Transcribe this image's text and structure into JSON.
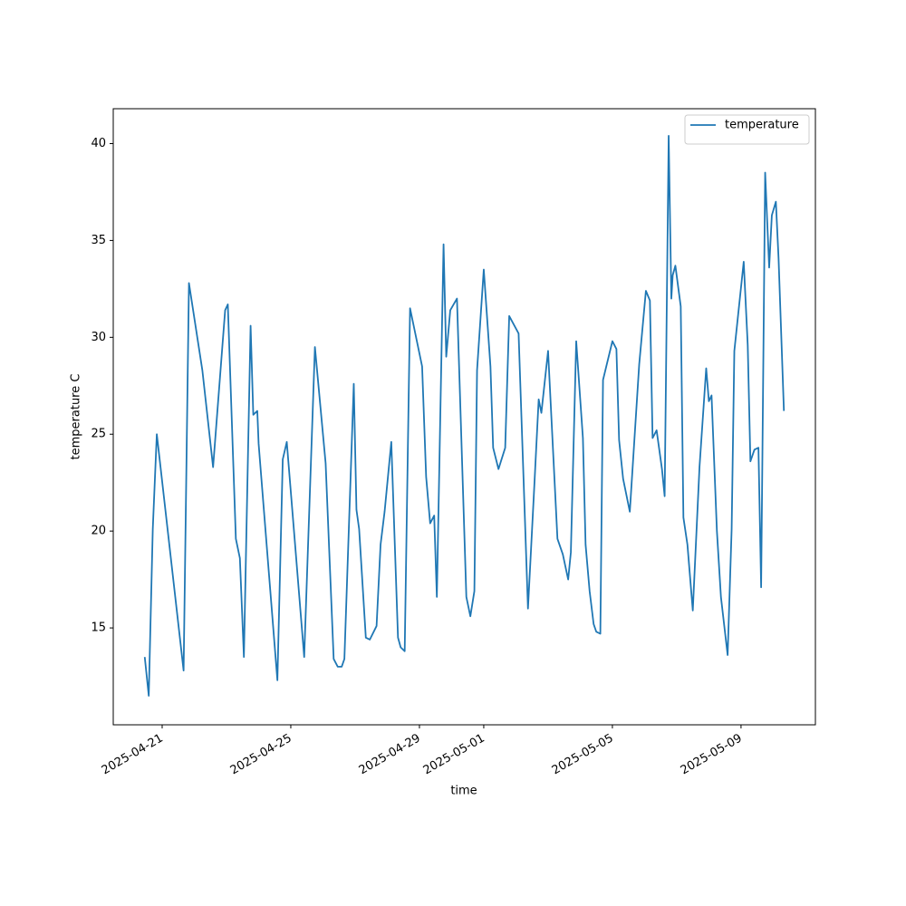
{
  "chart_data": {
    "type": "line",
    "xlabel": "time",
    "ylabel": "temperature C",
    "legend": "upper right",
    "xlim": [
      "2025-04-19T11:30",
      "2025-05-11T07:30"
    ],
    "xticks": [
      "2025-04-21",
      "2025-04-25",
      "2025-04-29",
      "2025-05-01",
      "2025-05-05",
      "2025-05-09"
    ],
    "ylim": [
      10,
      41.8
    ],
    "yticks": [
      15,
      20,
      25,
      30,
      35,
      40
    ],
    "x": [
      "2025-04-20T11:00",
      "2025-04-20T14:00",
      "2025-04-20T17:00",
      "2025-04-20T20:00",
      "2025-04-21T16:00",
      "2025-04-21T20:00",
      "2025-04-22T06:00",
      "2025-04-22T14:00",
      "2025-04-22T23:00",
      "2025-04-23T01:00",
      "2025-04-23T07:00",
      "2025-04-23T10:00",
      "2025-04-23T13:00",
      "2025-04-23T18:00",
      "2025-04-23T20:00",
      "2025-04-23T23:00",
      "2025-04-24T00:00",
      "2025-04-24T14:00",
      "2025-04-24T18:00",
      "2025-04-24T21:00",
      "2025-04-25T10:00",
      "2025-04-25T18:00",
      "2025-04-26T02:00",
      "2025-04-26T08:00",
      "2025-04-26T11:00",
      "2025-04-26T14:00",
      "2025-04-26T16:00",
      "2025-04-26T23:00",
      "2025-04-27T01:00",
      "2025-04-27T03:00",
      "2025-04-27T08:00",
      "2025-04-27T11:00",
      "2025-04-27T16:00",
      "2025-04-27T19:00",
      "2025-04-27T22:00",
      "2025-04-28T03:00",
      "2025-04-28T08:00",
      "2025-04-28T10:00",
      "2025-04-28T13:00",
      "2025-04-28T17:00",
      "2025-04-29T02:00",
      "2025-04-29T05:00",
      "2025-04-29T08:00",
      "2025-04-29T11:00",
      "2025-04-29T13:00",
      "2025-04-29T18:00",
      "2025-04-29T20:00",
      "2025-04-29T23:00",
      "2025-04-30T04:00",
      "2025-04-30T11:00",
      "2025-04-30T14:00",
      "2025-04-30T17:00",
      "2025-04-30T19:00",
      "2025-05-01T00:00",
      "2025-05-01T05:00",
      "2025-05-01T07:00",
      "2025-05-01T11:00",
      "2025-05-01T16:00",
      "2025-05-01T19:00",
      "2025-05-02T02:00",
      "2025-05-02T09:00",
      "2025-05-02T14:00",
      "2025-05-02T17:00",
      "2025-05-02T19:00",
      "2025-05-03T00:00",
      "2025-05-03T07:00",
      "2025-05-03T11:00",
      "2025-05-03T15:00",
      "2025-05-03T17:00",
      "2025-05-03T21:00",
      "2025-05-04T02:00",
      "2025-05-04T04:00",
      "2025-05-04T07:00",
      "2025-05-04T10:00",
      "2025-05-04T12:00",
      "2025-05-04T15:00",
      "2025-05-04T17:00",
      "2025-05-05T00:00",
      "2025-05-05T03:00",
      "2025-05-05T05:00",
      "2025-05-05T08:00",
      "2025-05-05T13:00",
      "2025-05-05T20:00",
      "2025-05-06T01:00",
      "2025-05-06T04:00",
      "2025-05-06T06:00",
      "2025-05-06T09:00",
      "2025-05-06T13:00",
      "2025-05-06T15:00",
      "2025-05-06T18:00",
      "2025-05-06T20:00",
      "2025-05-06T21:00",
      "2025-05-06T23:00",
      "2025-05-07T03:00",
      "2025-05-07T05:00",
      "2025-05-07T08:00",
      "2025-05-07T12:00",
      "2025-05-07T17:00",
      "2025-05-07T22:00",
      "2025-05-08T00:00",
      "2025-05-08T02:00",
      "2025-05-08T06:00",
      "2025-05-08T09:00",
      "2025-05-08T14:00",
      "2025-05-08T17:00",
      "2025-05-08T19:00",
      "2025-05-09T02:00",
      "2025-05-09T05:00",
      "2025-05-09T07:00",
      "2025-05-09T10:00",
      "2025-05-09T13:00",
      "2025-05-09T15:00",
      "2025-05-09T18:00",
      "2025-05-09T21:00",
      "2025-05-09T23:00",
      "2025-05-10T02:00",
      "2025-05-10T04:00",
      "2025-05-10T08:00"
    ],
    "series": [
      {
        "name": "temperature",
        "color": "#1f77b4",
        "values": [
          13.5,
          11.5,
          20.1,
          25.0,
          12.8,
          32.8,
          28.3,
          23.3,
          31.4,
          31.7,
          19.6,
          18.6,
          13.5,
          30.6,
          26.0,
          26.2,
          24.5,
          12.3,
          23.7,
          24.6,
          13.5,
          29.5,
          23.5,
          13.4,
          13.0,
          13.0,
          13.4,
          27.6,
          21.1,
          20.1,
          14.5,
          14.4,
          15.1,
          19.3,
          21.0,
          24.6,
          14.5,
          14.0,
          13.8,
          31.5,
          28.5,
          22.8,
          20.4,
          20.8,
          16.6,
          34.8,
          29.0,
          31.4,
          32.0,
          16.6,
          15.6,
          16.9,
          28.3,
          33.5,
          28.5,
          24.3,
          23.2,
          24.3,
          31.1,
          30.2,
          16.0,
          22.7,
          26.8,
          26.1,
          29.3,
          19.6,
          18.8,
          17.5,
          18.9,
          29.8,
          24.8,
          19.3,
          16.9,
          15.2,
          14.8,
          14.7,
          27.8,
          29.8,
          29.4,
          24.7,
          22.7,
          21.0,
          28.6,
          32.4,
          31.9,
          24.8,
          25.2,
          23.2,
          21.8,
          40.4,
          32.0,
          33.2,
          33.7,
          31.6,
          20.7,
          19.3,
          15.9,
          23.3,
          28.4,
          26.7,
          27.0,
          20.0,
          16.6,
          13.6,
          20.1,
          29.3,
          33.9,
          29.6,
          23.6,
          24.2,
          24.3,
          17.1,
          38.5,
          33.6,
          36.3,
          37.0,
          34.1,
          26.2
        ]
      }
    ]
  }
}
